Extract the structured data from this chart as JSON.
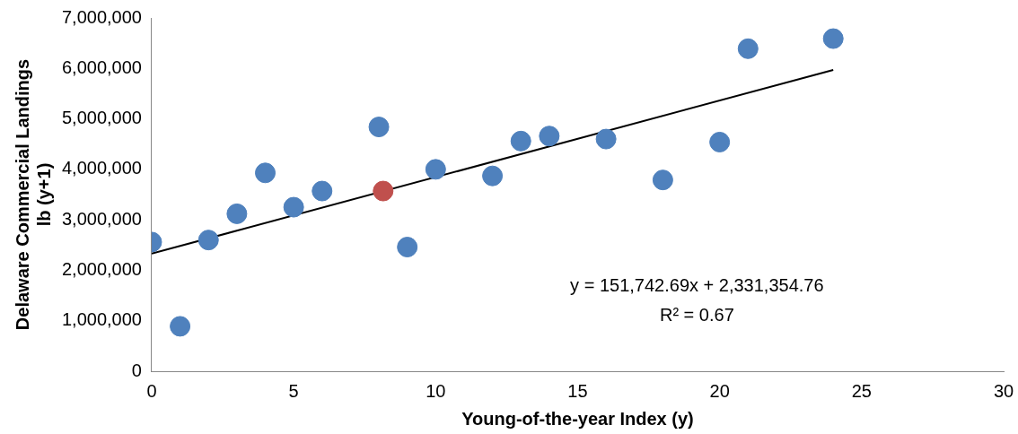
{
  "chart_data": {
    "type": "scatter",
    "xlabel": "Young-of-the-year Index (y)",
    "ylabel": "Delaware Commercial Landings\nlb (y+1)",
    "series": [
      {
        "color": "#4f81bd",
        "x": [
          0,
          1,
          2,
          3,
          4,
          5,
          6,
          8,
          9,
          10,
          12,
          13,
          14,
          16,
          18,
          20,
          21,
          24
        ],
        "values": [
          2560000,
          890000,
          2600000,
          3120000,
          3930000,
          3250000,
          3570000,
          4840000,
          2460000,
          4000000,
          3870000,
          4560000,
          4660000,
          4600000,
          3790000,
          4540000,
          6390000,
          6590000
        ]
      },
      {
        "color": "#c0504d",
        "x": [
          8.15
        ],
        "values": [
          3570000
        ]
      },
      {
        "type": "line",
        "color": "#000000",
        "x": [
          0,
          24
        ],
        "values": [
          2330000,
          5970000
        ],
        "marker": "none"
      }
    ],
    "xlim": [
      0,
      30
    ],
    "xticks": [
      0,
      5,
      10,
      15,
      20,
      25,
      30
    ],
    "ylim": [
      0,
      7000000
    ],
    "yticks": [
      0,
      {
        "value": 1000000,
        "label": "1,000,000"
      },
      {
        "value": 2000000,
        "label": "2,000,000"
      },
      {
        "value": 3000000,
        "label": "3,000,000"
      },
      {
        "value": 4000000,
        "label": "4,000,000"
      },
      {
        "value": 5000000,
        "label": "5,000,000"
      },
      {
        "value": 6000000,
        "label": "6,000,000"
      },
      {
        "value": 7000000,
        "label": "7,000,000"
      }
    ],
    "marker": "circle",
    "grid": false,
    "legend": false,
    "annotations": [
      "y = 151,742.69x + 2,331,354.76",
      "R² = 0.67"
    ]
  }
}
